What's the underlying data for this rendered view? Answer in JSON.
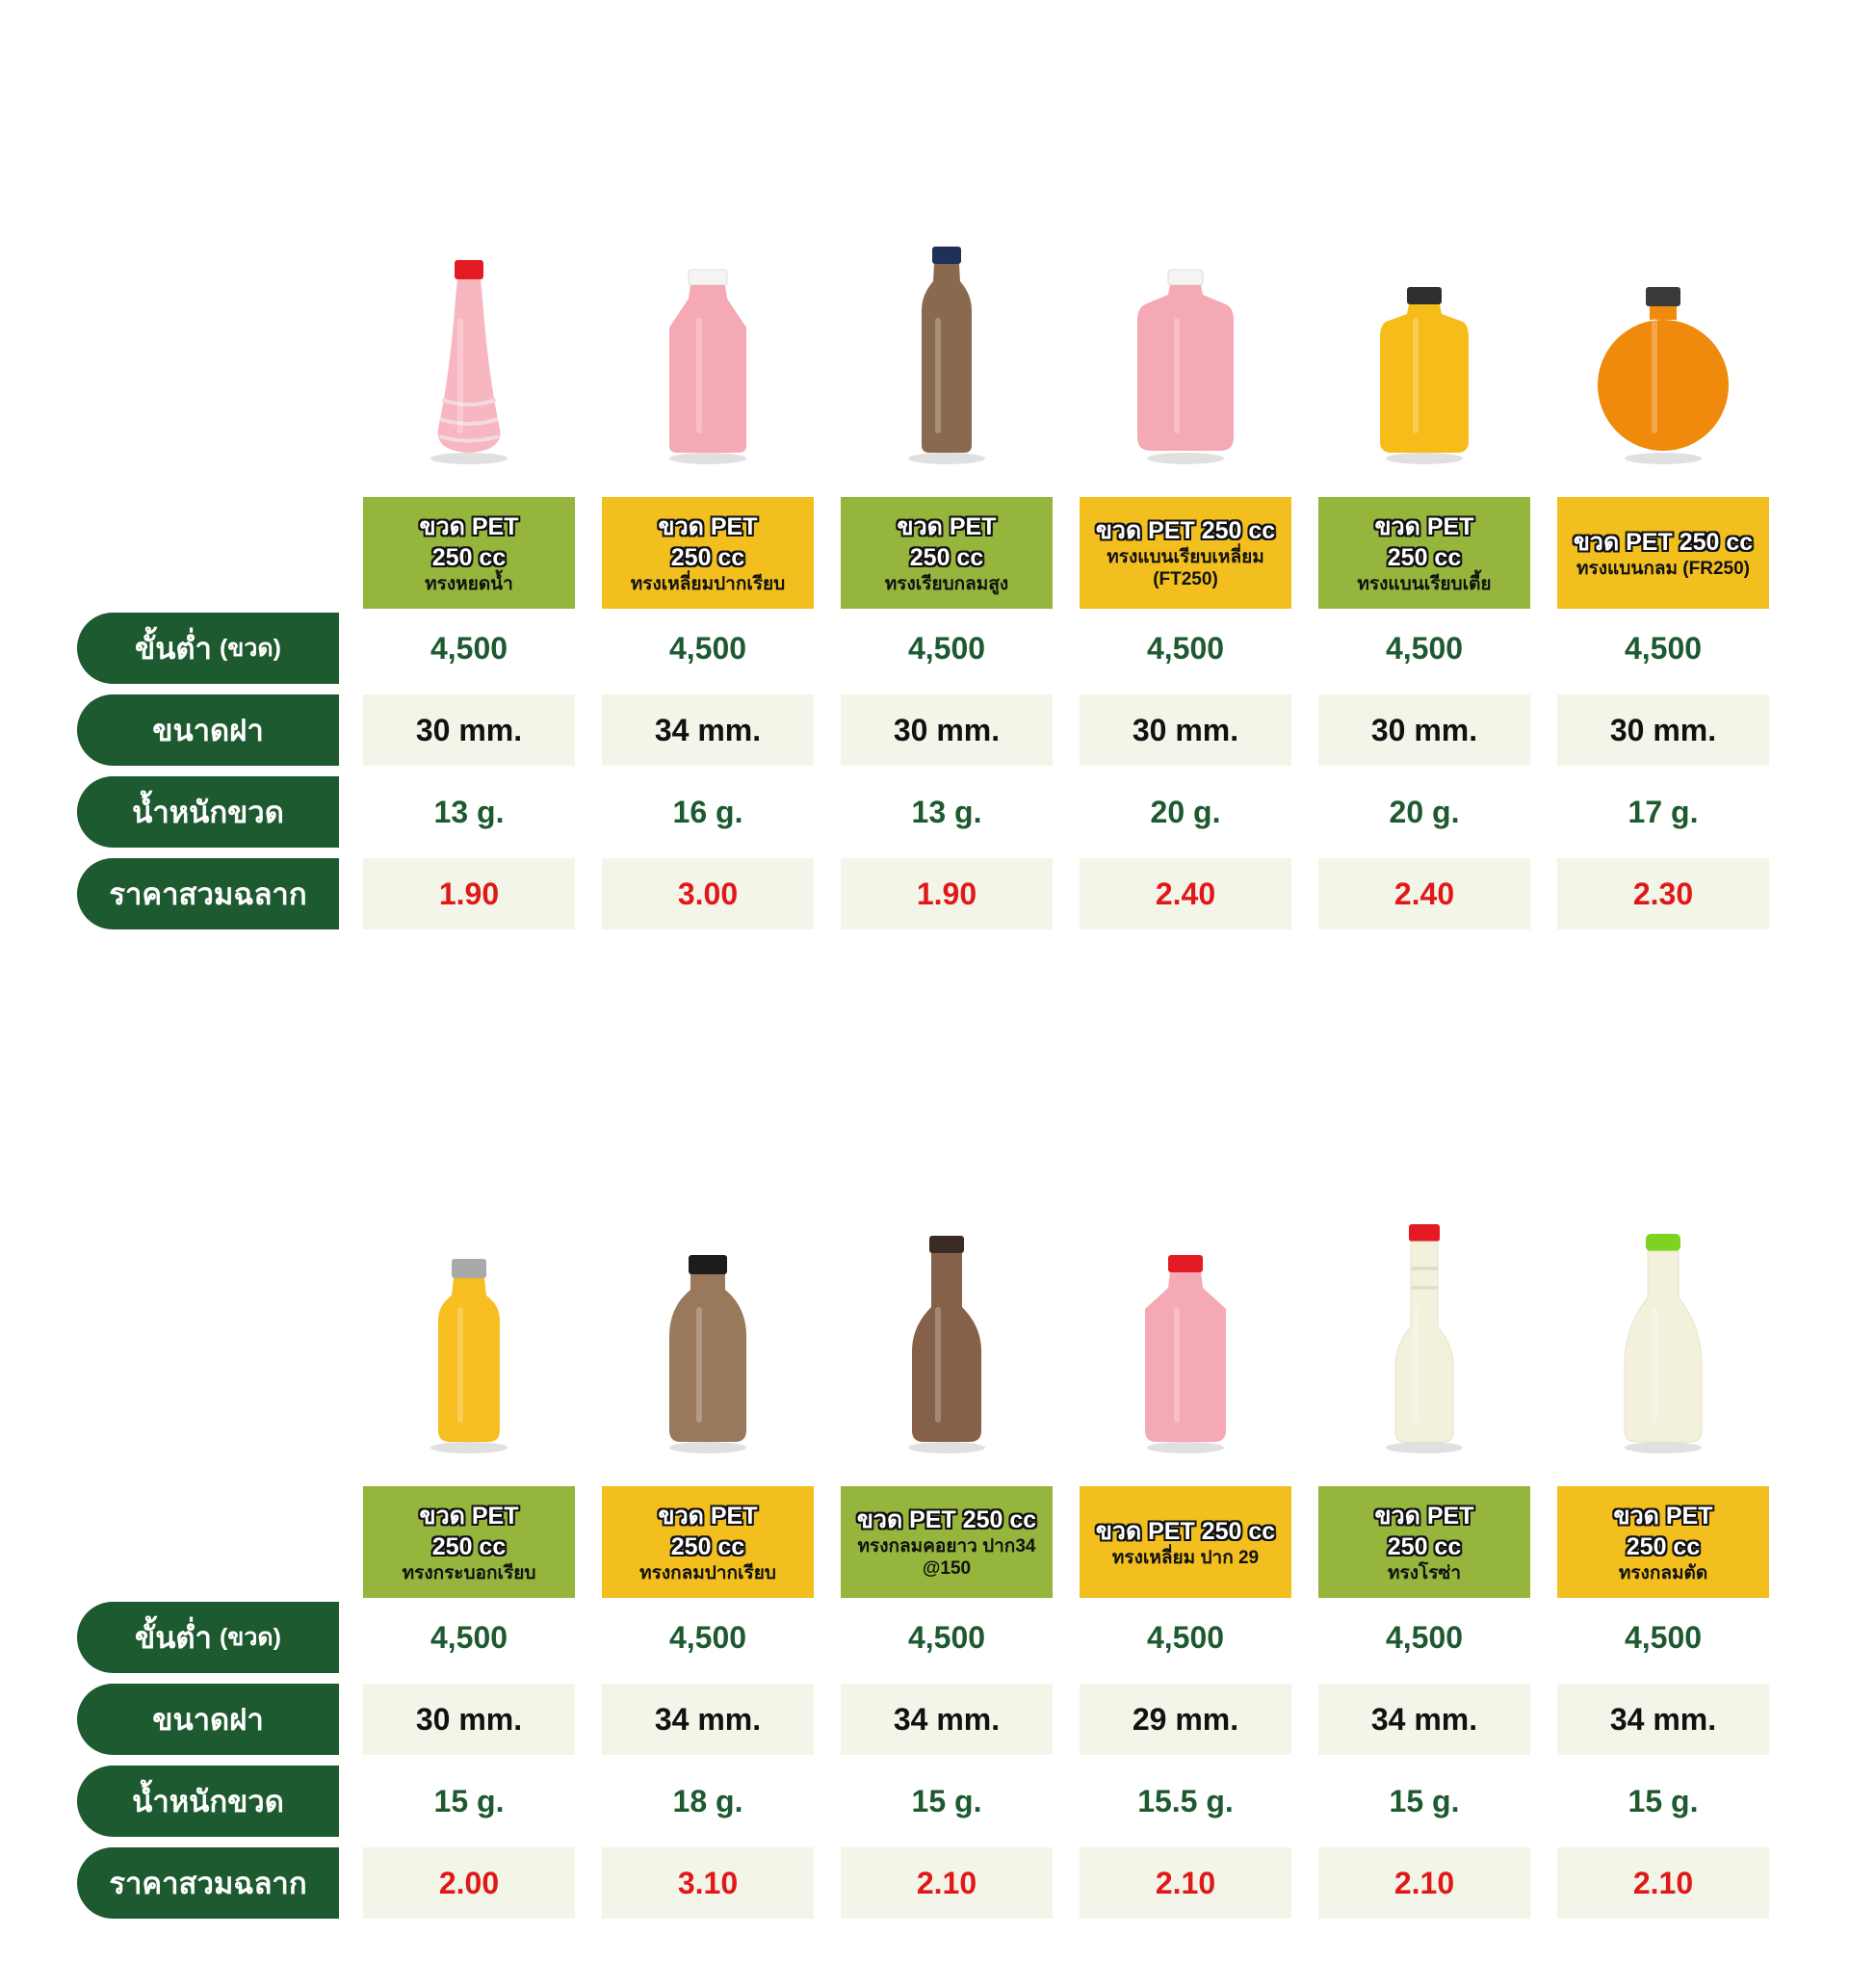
{
  "row_labels": {
    "min_order": "ขั้นต่ำ",
    "min_order_unit": "(ขวด)",
    "cap_size": "ขนาดฝา",
    "bottle_weight": "น้ำหนักขวด",
    "price_with_label": "ราคาสวมฉลาก"
  },
  "sections": [
    {
      "products": [
        {
          "title": "ขวด PET 250 cc",
          "subtitle": "ทรงหยดน้ำ",
          "min_order": "4,500",
          "cap": "30 mm.",
          "weight": "13 g.",
          "price": "1.90",
          "header_color": "green",
          "liquid": "#f7b6c0",
          "cap_color": "#e51b24",
          "shape": "drop"
        },
        {
          "title": "ขวด PET 250 cc",
          "subtitle": "ทรงเหลี่ยมปากเรียบ",
          "min_order": "4,500",
          "cap": "34 mm.",
          "weight": "16 g.",
          "price": "3.00",
          "header_color": "yellow",
          "liquid": "#f5a9b4",
          "cap_color": "#f4f4f4",
          "shape": "square"
        },
        {
          "title": "ขวด PET 250 cc",
          "subtitle": "ทรงเรียบกลมสูง",
          "min_order": "4,500",
          "cap": "30 mm.",
          "weight": "13 g.",
          "price": "1.90",
          "header_color": "green",
          "liquid": "#8a6a4f",
          "cap_color": "#1e3158",
          "shape": "tall"
        },
        {
          "title": "ขวด PET 250 cc",
          "subtitle": "ทรงแบนเรียบเหลี่ยม (FT250)",
          "min_order": "4,500",
          "cap": "30 mm.",
          "weight": "20 g.",
          "price": "2.40",
          "header_color": "yellow",
          "liquid": "#f5a9b4",
          "cap_color": "#f4f4f4",
          "shape": "flat"
        },
        {
          "title": "ขวด PET 250 cc",
          "subtitle": "ทรงแบนเรียบเตี้ย",
          "min_order": "4,500",
          "cap": "30 mm.",
          "weight": "20 g.",
          "price": "2.40",
          "header_color": "green",
          "liquid": "#f6bc1a",
          "cap_color": "#2f2f2f",
          "shape": "flatshort"
        },
        {
          "title": "ขวด PET 250 cc",
          "subtitle": "ทรงแบนกลม (FR250)",
          "min_order": "4,500",
          "cap": "30 mm.",
          "weight": "17 g.",
          "price": "2.30",
          "header_color": "yellow",
          "liquid": "#f08a0c",
          "cap_color": "#3a3a3a",
          "shape": "round"
        }
      ]
    },
    {
      "products": [
        {
          "title": "ขวด PET 250 cc",
          "subtitle": "ทรงกระบอกเรียบ",
          "min_order": "4,500",
          "cap": "30 mm.",
          "weight": "15 g.",
          "price": "2.00",
          "header_color": "green",
          "liquid": "#f7be22",
          "cap_color": "#a9a9a9",
          "shape": "cylinder"
        },
        {
          "title": "ขวด PET 250 cc",
          "subtitle": "ทรงกลมปากเรียบ",
          "min_order": "4,500",
          "cap": "34 mm.",
          "weight": "18 g.",
          "price": "3.10",
          "header_color": "yellow",
          "liquid": "#9a785c",
          "cap_color": "#1c1c1c",
          "shape": "milk"
        },
        {
          "title": "ขวด PET 250 cc",
          "subtitle": "ทรงกลมคอยาว ปาก34 @150",
          "min_order": "4,500",
          "cap": "34 mm.",
          "weight": "15 g.",
          "price": "2.10",
          "header_color": "green",
          "liquid": "#86614a",
          "cap_color": "#3b2b25",
          "shape": "longneck"
        },
        {
          "title": "ขวด PET 250 cc",
          "subtitle": "ทรงเหลี่ยม ปาก 29",
          "min_order": "4,500",
          "cap": "29 mm.",
          "weight": "15.5 g.",
          "price": "2.10",
          "header_color": "yellow",
          "liquid": "#f5a9b4",
          "cap_color": "#e51b24",
          "shape": "square29"
        },
        {
          "title": "ขวด PET 250 cc",
          "subtitle": "ทรงโรซ่า",
          "min_order": "4,500",
          "cap": "34 mm.",
          "weight": "15 g.",
          "price": "2.10",
          "header_color": "green",
          "liquid": "#f3f1dc",
          "cap_color": "#e51b24",
          "shape": "rosa"
        },
        {
          "title": "ขวด PET 250 cc",
          "subtitle": "ทรงกลมตัด",
          "min_order": "4,500",
          "cap": "34 mm.",
          "weight": "15 g.",
          "price": "2.10",
          "header_color": "yellow",
          "liquid": "#f3f1dc",
          "cap_color": "#7ed321",
          "shape": "roundcut"
        }
      ]
    }
  ]
}
